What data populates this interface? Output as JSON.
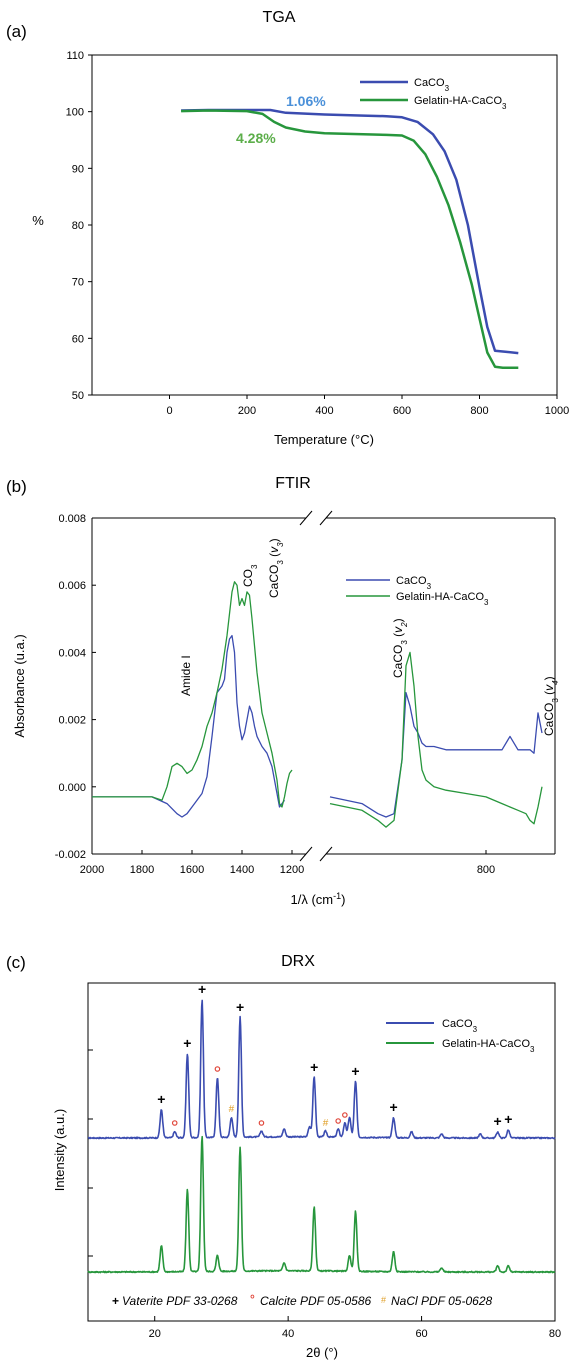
{
  "colors": {
    "caco3": "#3b4cb0",
    "gelatin": "#27963c",
    "annot_blue": "#4a90d9",
    "annot_green": "#5cae4a",
    "red": "#e0463a",
    "orange": "#e0a02a"
  },
  "chart_data": [
    {
      "type": "line",
      "panel": "(a)",
      "title": "TGA",
      "xlabel": "Temperature (°C)",
      "ylabel": "%",
      "xlim": [
        -200,
        1000
      ],
      "ylim": [
        50,
        110
      ],
      "xticks": [
        "0",
        "200",
        "400",
        "600",
        "800",
        "1000"
      ],
      "yticks": [
        "50",
        "60",
        "70",
        "80",
        "90",
        "100",
        "110"
      ],
      "legend_position": "top-right",
      "series": [
        {
          "name": "CaCO3",
          "x": [
            30,
            100,
            200,
            260,
            300,
            400,
            500,
            560,
            600,
            640,
            680,
            710,
            740,
            770,
            800,
            820,
            840,
            870,
            900
          ],
          "y": [
            100.2,
            100.3,
            100.3,
            100.3,
            99.8,
            99.5,
            99.3,
            99.2,
            99.0,
            98.2,
            96.0,
            93.0,
            88.0,
            80.0,
            69.0,
            62.0,
            57.8,
            57.6,
            57.4
          ]
        },
        {
          "name": "Gelatin-HA-CaCO3",
          "x": [
            30,
            100,
            200,
            240,
            270,
            300,
            350,
            400,
            450,
            500,
            560,
            600,
            630,
            660,
            690,
            720,
            750,
            780,
            800,
            820,
            840,
            860,
            900
          ],
          "y": [
            100.1,
            100.2,
            100.1,
            99.6,
            98.2,
            97.2,
            96.5,
            96.2,
            96.1,
            96.0,
            95.9,
            95.8,
            94.9,
            92.5,
            88.5,
            83.5,
            77.0,
            69.5,
            63.5,
            57.5,
            55.0,
            54.8,
            54.8
          ]
        }
      ],
      "annotations": [
        {
          "text": "1.06%",
          "x": 360,
          "y": 101.2
        },
        {
          "text": "4.28%",
          "x": 235,
          "y": 95.5
        }
      ]
    },
    {
      "type": "line",
      "panel": "(b)",
      "title": "FTIR",
      "xlabel": "1/λ (cm⁻¹)",
      "ylabel": "Absorbance (u.a.)",
      "ylim": [
        -0.002,
        0.008
      ],
      "yticks": [
        "-0.002",
        "0.000",
        "0.002",
        "0.004",
        "0.006",
        "0.008"
      ],
      "xticks_left": [
        "2000",
        "1800",
        "1600",
        "1400",
        "1200"
      ],
      "xticks_right": [
        "800"
      ],
      "legend_position": "top-right",
      "series": [
        {
          "name": "CaCO3",
          "x_left": [
            2000,
            1850,
            1760,
            1700,
            1660,
            1640,
            1620,
            1600,
            1580,
            1560,
            1540,
            1520,
            1500,
            1480,
            1470,
            1460,
            1450,
            1440,
            1430,
            1420,
            1410,
            1400,
            1390,
            1380,
            1370,
            1360,
            1350,
            1340,
            1320,
            1300,
            1280,
            1260,
            1250,
            1240,
            1230
          ],
          "y_left": [
            -0.0003,
            -0.0003,
            -0.0003,
            -0.0005,
            -0.0008,
            -0.0009,
            -0.0008,
            -0.0006,
            -0.0004,
            -0.0002,
            0.0003,
            0.0015,
            0.0028,
            0.003,
            0.0032,
            0.004,
            0.0044,
            0.0045,
            0.004,
            0.0025,
            0.0018,
            0.0014,
            0.0016,
            0.002,
            0.0024,
            0.0022,
            0.0018,
            0.0015,
            0.0012,
            0.001,
            0.0006,
            -0.0002,
            -0.0006,
            -0.0005,
            -0.0004
          ],
          "x_right": [
            1190,
            1110,
            1070,
            1050,
            1030,
            1010,
            1000,
            990,
            980,
            970,
            960,
            950,
            930,
            900,
            850,
            800,
            760,
            740,
            720,
            700,
            690,
            680,
            670,
            660
          ],
          "y_right": [
            -0.0003,
            -0.0005,
            -0.0008,
            -0.0009,
            -0.0008,
            0.0008,
            0.0028,
            0.0024,
            0.0018,
            0.0016,
            0.0013,
            0.0012,
            0.0012,
            0.0011,
            0.0011,
            0.0011,
            0.0011,
            0.0015,
            0.0011,
            0.0011,
            0.0011,
            0.001,
            0.0022,
            0.0016
          ]
        },
        {
          "name": "Gelatin-HA-CaCO3",
          "x_left": [
            2000,
            1850,
            1760,
            1720,
            1700,
            1680,
            1660,
            1640,
            1620,
            1600,
            1580,
            1560,
            1540,
            1520,
            1500,
            1480,
            1460,
            1440,
            1430,
            1420,
            1410,
            1400,
            1390,
            1380,
            1370,
            1360,
            1350,
            1340,
            1320,
            1300,
            1280,
            1260,
            1250,
            1240,
            1230,
            1220,
            1210,
            1200
          ],
          "y_left": [
            -0.0003,
            -0.0003,
            -0.0003,
            -0.0004,
            0.0,
            0.0006,
            0.0007,
            0.0006,
            0.0004,
            0.0005,
            0.0008,
            0.0012,
            0.0018,
            0.0022,
            0.0028,
            0.0035,
            0.0045,
            0.0058,
            0.0061,
            0.006,
            0.0054,
            0.0056,
            0.0054,
            0.0058,
            0.0057,
            0.005,
            0.0042,
            0.0034,
            0.0022,
            0.0016,
            0.001,
            0.0002,
            -0.0005,
            -0.0006,
            -0.0003,
            0.0001,
            0.0004,
            0.0005
          ],
          "x_right": [
            1190,
            1110,
            1070,
            1050,
            1030,
            1010,
            1000,
            990,
            980,
            970,
            960,
            950,
            930,
            900,
            850,
            800,
            760,
            740,
            720,
            700,
            690,
            680,
            670,
            660
          ],
          "y_right": [
            -0.0005,
            -0.0007,
            -0.001,
            -0.0012,
            -0.001,
            0.0008,
            0.0036,
            0.004,
            0.003,
            0.0015,
            0.0005,
            0.0002,
            0.0,
            -0.0001,
            -0.0002,
            -0.0003,
            -0.0005,
            -0.0006,
            -0.0007,
            -0.0008,
            -0.001,
            -0.0011,
            -0.0006,
            0.0
          ]
        }
      ],
      "annotations": [
        {
          "text": "Amide I",
          "x": 1660,
          "y": 0.0012
        },
        {
          "text": "CO3",
          "x": 1430,
          "y": 0.0064
        },
        {
          "text": "CaCO3 (v3)",
          "x": 1370,
          "y": 0.0059
        },
        {
          "text": "CaCO3 (v2)",
          "x": 985,
          "y": 0.0042
        },
        {
          "text": "CaCO3 (v4)",
          "x": 665,
          "y": 0.0024
        }
      ]
    },
    {
      "type": "line",
      "panel": "(c)",
      "title": "DRX",
      "xlabel": "2θ (°)",
      "ylabel": "Intensity (a.u.)",
      "xlim": [
        10,
        80
      ],
      "xticks": [
        "20",
        "40",
        "60",
        "80"
      ],
      "legend_position": "top-right",
      "series": [
        {
          "name": "CaCO3",
          "peaks": [
            [
              21.0,
              0.14
            ],
            [
              23.0,
              0.03
            ],
            [
              24.9,
              0.42
            ],
            [
              27.1,
              0.69
            ],
            [
              29.4,
              0.3
            ],
            [
              31.5,
              0.1
            ],
            [
              32.8,
              0.6
            ],
            [
              36.0,
              0.03
            ],
            [
              39.4,
              0.04
            ],
            [
              43.2,
              0.05
            ],
            [
              43.9,
              0.3
            ],
            [
              45.6,
              0.03
            ],
            [
              47.5,
              0.04
            ],
            [
              48.5,
              0.07
            ],
            [
              49.2,
              0.1
            ],
            [
              50.1,
              0.28
            ],
            [
              55.8,
              0.1
            ],
            [
              58.5,
              0.03
            ],
            [
              63.0,
              0.02
            ],
            [
              68.8,
              0.02
            ],
            [
              71.4,
              0.03
            ],
            [
              73.0,
              0.04
            ]
          ]
        },
        {
          "name": "Gelatin-HA-CaCO3",
          "peaks": [
            [
              21.0,
              0.13
            ],
            [
              24.9,
              0.41
            ],
            [
              27.1,
              0.68
            ],
            [
              29.4,
              0.08
            ],
            [
              32.8,
              0.62
            ],
            [
              39.4,
              0.04
            ],
            [
              43.9,
              0.32
            ],
            [
              49.2,
              0.08
            ],
            [
              50.1,
              0.3
            ],
            [
              55.8,
              0.1
            ],
            [
              63.0,
              0.02
            ],
            [
              71.4,
              0.03
            ],
            [
              73.0,
              0.03
            ]
          ]
        }
      ],
      "markers": {
        "vaterite": [
          21.0,
          24.9,
          27.1,
          32.8,
          43.9,
          50.1,
          55.8,
          71.4,
          73.0
        ],
        "calcite": [
          23.0,
          29.4,
          36.0,
          47.5,
          48.5
        ],
        "nacl": [
          31.5,
          45.6
        ]
      },
      "marker_legend": {
        "plus": "+",
        "vaterite": "Vaterite PDF 33-0268",
        "circle": "°",
        "calcite": "Calcite PDF 05-0586",
        "hash": "#",
        "nacl": "NaCl PDF 05-0628"
      }
    }
  ]
}
